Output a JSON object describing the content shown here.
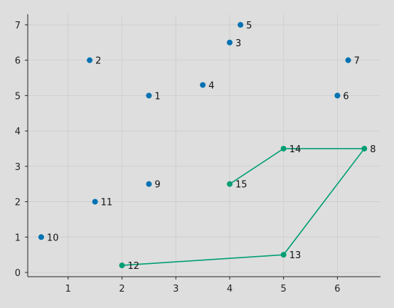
{
  "chart_data": {
    "type": "scatter",
    "title": "",
    "xlabel": "",
    "ylabel": "",
    "xlim": [
      0.25,
      6.8
    ],
    "ylim": [
      -0.12,
      7.3
    ],
    "xticks": [
      1,
      2,
      3,
      4,
      5,
      6
    ],
    "yticks": [
      0,
      1,
      2,
      3,
      4,
      5,
      6,
      7
    ],
    "grid": true,
    "colors": {
      "background": "#dedede",
      "grid": "#cccccc",
      "axis": "#222222",
      "points": "#0072b2",
      "route": "#009e73"
    },
    "points": [
      {
        "label": "1",
        "x": 2.5,
        "y": 5.0
      },
      {
        "label": "2",
        "x": 1.4,
        "y": 6.0
      },
      {
        "label": "3",
        "x": 4.0,
        "y": 6.5
      },
      {
        "label": "4",
        "x": 3.5,
        "y": 5.3
      },
      {
        "label": "5",
        "x": 4.2,
        "y": 7.0
      },
      {
        "label": "6",
        "x": 6.0,
        "y": 5.0
      },
      {
        "label": "7",
        "x": 6.2,
        "y": 6.0
      },
      {
        "label": "8",
        "x": 6.5,
        "y": 3.5
      },
      {
        "label": "9",
        "x": 2.5,
        "y": 2.5
      },
      {
        "label": "10",
        "x": 0.5,
        "y": 1.0
      },
      {
        "label": "11",
        "x": 1.5,
        "y": 2.0
      },
      {
        "label": "12",
        "x": 2.0,
        "y": 0.2
      },
      {
        "label": "13",
        "x": 5.0,
        "y": 0.5
      },
      {
        "label": "14",
        "x": 5.0,
        "y": 3.5
      },
      {
        "label": "15",
        "x": 4.0,
        "y": 2.5
      }
    ],
    "route": [
      "12",
      "13",
      "8",
      "14",
      "15"
    ]
  }
}
